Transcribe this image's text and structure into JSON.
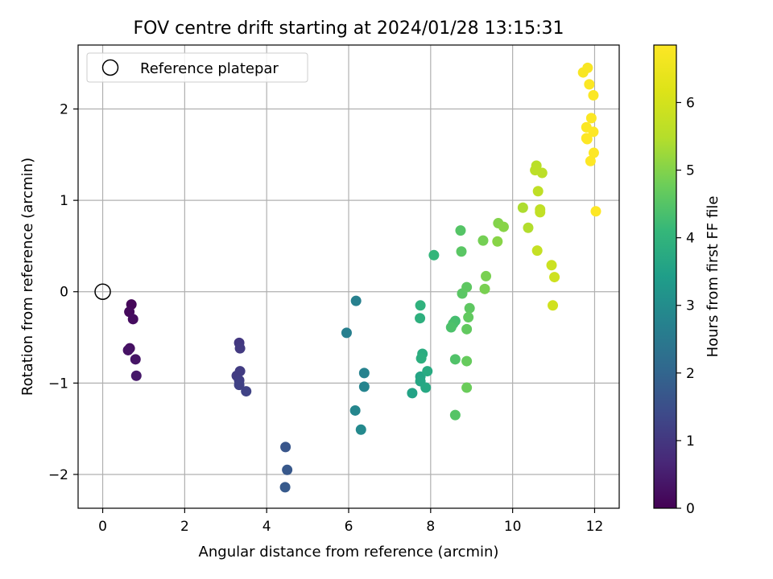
{
  "chart_data": {
    "type": "scatter",
    "title": "FOV centre drift starting at 2024/01/28 13:15:31",
    "xlabel": "Angular distance from reference (arcmin)",
    "ylabel": "Rotation from reference (arcmin)",
    "xlim": [
      -0.6,
      12.6
    ],
    "ylim": [
      -2.37,
      2.7
    ],
    "xticks": [
      0,
      2,
      4,
      6,
      8,
      10,
      12
    ],
    "yticks": [
      -2,
      -1,
      0,
      1,
      2
    ],
    "xtick_labels": [
      "0",
      "2",
      "4",
      "6",
      "8",
      "10",
      "12"
    ],
    "ytick_labels": [
      "−2",
      "−1",
      "0",
      "1",
      "2"
    ],
    "grid": true,
    "legend": {
      "placement": "top-left",
      "entries": [
        "Reference platepar"
      ]
    },
    "reference_point": {
      "x": 0,
      "y": 0
    },
    "colorbar": {
      "label": "Hours from first FF file",
      "colormap": "viridis",
      "range": [
        0,
        6.85
      ],
      "ticks": [
        0,
        1,
        2,
        3,
        4,
        5,
        6
      ],
      "tick_labels": [
        "0",
        "1",
        "2",
        "3",
        "4",
        "5",
        "6"
      ]
    },
    "points": [
      {
        "x": 0.7,
        "y": -0.14,
        "c": 0.1
      },
      {
        "x": 0.65,
        "y": -0.22,
        "c": 0.15
      },
      {
        "x": 0.74,
        "y": -0.3,
        "c": 0.2
      },
      {
        "x": 0.66,
        "y": -0.62,
        "c": 0.25
      },
      {
        "x": 0.62,
        "y": -0.64,
        "c": 0.3
      },
      {
        "x": 0.8,
        "y": -0.74,
        "c": 0.35
      },
      {
        "x": 0.82,
        "y": -0.92,
        "c": 0.4
      },
      {
        "x": 3.33,
        "y": -0.56,
        "c": 1.0
      },
      {
        "x": 3.35,
        "y": -0.62,
        "c": 1.05
      },
      {
        "x": 3.35,
        "y": -0.87,
        "c": 1.1
      },
      {
        "x": 3.27,
        "y": -0.92,
        "c": 1.1
      },
      {
        "x": 3.33,
        "y": -0.97,
        "c": 1.15
      },
      {
        "x": 3.33,
        "y": -1.02,
        "c": 1.2
      },
      {
        "x": 3.5,
        "y": -1.09,
        "c": 1.25
      },
      {
        "x": 4.46,
        "y": -1.7,
        "c": 1.65
      },
      {
        "x": 4.5,
        "y": -1.95,
        "c": 1.7
      },
      {
        "x": 4.45,
        "y": -2.14,
        "c": 1.75
      },
      {
        "x": 5.95,
        "y": -0.45,
        "c": 2.65
      },
      {
        "x": 6.18,
        "y": -0.1,
        "c": 2.7
      },
      {
        "x": 6.38,
        "y": -0.89,
        "c": 2.75
      },
      {
        "x": 6.38,
        "y": -1.04,
        "c": 2.8
      },
      {
        "x": 6.16,
        "y": -1.3,
        "c": 2.85
      },
      {
        "x": 6.3,
        "y": -1.51,
        "c": 2.9
      },
      {
        "x": 7.55,
        "y": -1.11,
        "c": 3.55
      },
      {
        "x": 7.75,
        "y": -0.93,
        "c": 3.6
      },
      {
        "x": 7.75,
        "y": -0.98,
        "c": 3.65
      },
      {
        "x": 7.88,
        "y": -1.05,
        "c": 3.7
      },
      {
        "x": 7.92,
        "y": -0.87,
        "c": 3.75
      },
      {
        "x": 7.8,
        "y": -0.68,
        "c": 3.8
      },
      {
        "x": 7.77,
        "y": -0.73,
        "c": 3.85
      },
      {
        "x": 7.74,
        "y": -0.29,
        "c": 3.9
      },
      {
        "x": 7.75,
        "y": -0.15,
        "c": 3.95
      },
      {
        "x": 8.08,
        "y": 0.4,
        "c": 4.05
      },
      {
        "x": 8.6,
        "y": -0.32,
        "c": 4.3
      },
      {
        "x": 8.55,
        "y": -0.35,
        "c": 4.35
      },
      {
        "x": 8.5,
        "y": -0.39,
        "c": 4.4
      },
      {
        "x": 8.6,
        "y": -0.74,
        "c": 4.45
      },
      {
        "x": 8.6,
        "y": -1.35,
        "c": 4.5
      },
      {
        "x": 8.73,
        "y": 0.67,
        "c": 4.5
      },
      {
        "x": 8.75,
        "y": 0.44,
        "c": 4.55
      },
      {
        "x": 8.77,
        "y": -0.02,
        "c": 4.55
      },
      {
        "x": 8.88,
        "y": 0.05,
        "c": 4.6
      },
      {
        "x": 8.95,
        "y": -0.18,
        "c": 4.6
      },
      {
        "x": 8.92,
        "y": -0.28,
        "c": 4.65
      },
      {
        "x": 8.88,
        "y": -0.41,
        "c": 4.65
      },
      {
        "x": 8.88,
        "y": -0.76,
        "c": 4.7
      },
      {
        "x": 8.88,
        "y": -1.05,
        "c": 4.75
      },
      {
        "x": 9.28,
        "y": 0.56,
        "c": 4.85
      },
      {
        "x": 9.35,
        "y": 0.17,
        "c": 4.9
      },
      {
        "x": 9.32,
        "y": 0.03,
        "c": 4.9
      },
      {
        "x": 9.65,
        "y": 0.75,
        "c": 5.0
      },
      {
        "x": 9.78,
        "y": 0.71,
        "c": 5.05
      },
      {
        "x": 9.63,
        "y": 0.55,
        "c": 5.05
      },
      {
        "x": 10.25,
        "y": 0.92,
        "c": 5.4
      },
      {
        "x": 10.38,
        "y": 0.7,
        "c": 5.45
      },
      {
        "x": 10.58,
        "y": 1.38,
        "c": 5.55
      },
      {
        "x": 10.55,
        "y": 1.33,
        "c": 5.6
      },
      {
        "x": 10.72,
        "y": 1.3,
        "c": 5.6
      },
      {
        "x": 10.62,
        "y": 1.1,
        "c": 5.65
      },
      {
        "x": 10.67,
        "y": 0.9,
        "c": 5.65
      },
      {
        "x": 10.67,
        "y": 0.87,
        "c": 5.7
      },
      {
        "x": 10.6,
        "y": 0.45,
        "c": 5.75
      },
      {
        "x": 10.95,
        "y": 0.29,
        "c": 5.85
      },
      {
        "x": 11.02,
        "y": 0.16,
        "c": 5.9
      },
      {
        "x": 10.98,
        "y": -0.15,
        "c": 5.95
      },
      {
        "x": 11.72,
        "y": 2.4,
        "c": 6.75
      },
      {
        "x": 11.83,
        "y": 2.45,
        "c": 6.75
      },
      {
        "x": 11.87,
        "y": 2.27,
        "c": 6.8
      },
      {
        "x": 11.97,
        "y": 2.15,
        "c": 6.8
      },
      {
        "x": 11.92,
        "y": 1.9,
        "c": 6.8
      },
      {
        "x": 11.8,
        "y": 1.8,
        "c": 6.8
      },
      {
        "x": 11.97,
        "y": 1.75,
        "c": 6.85
      },
      {
        "x": 11.8,
        "y": 1.68,
        "c": 6.85
      },
      {
        "x": 11.82,
        "y": 1.67,
        "c": 6.85
      },
      {
        "x": 11.98,
        "y": 1.52,
        "c": 6.85
      },
      {
        "x": 11.9,
        "y": 1.43,
        "c": 6.85
      },
      {
        "x": 12.03,
        "y": 0.88,
        "c": 6.85
      }
    ]
  }
}
